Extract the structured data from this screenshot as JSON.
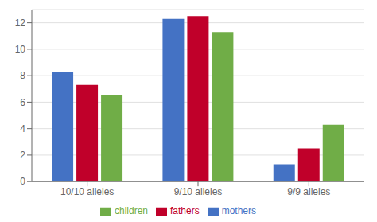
{
  "chart_data": {
    "type": "bar",
    "categories": [
      "10/10 alleles",
      "9/10 alleles",
      "9/9 alleles"
    ],
    "series": [
      {
        "name": "mothers",
        "color": "#4472C4",
        "values": [
          8.3,
          12.3,
          1.3
        ]
      },
      {
        "name": "fathers",
        "color": "#C0002A",
        "values": [
          7.3,
          12.5,
          2.5
        ]
      },
      {
        "name": "children",
        "color": "#70AD47",
        "values": [
          6.5,
          11.3,
          4.3
        ]
      }
    ],
    "ylim": [
      0,
      13
    ],
    "yticks": [
      0,
      2,
      4,
      6,
      8,
      10,
      12
    ],
    "grid": true,
    "legend": "bottom"
  }
}
